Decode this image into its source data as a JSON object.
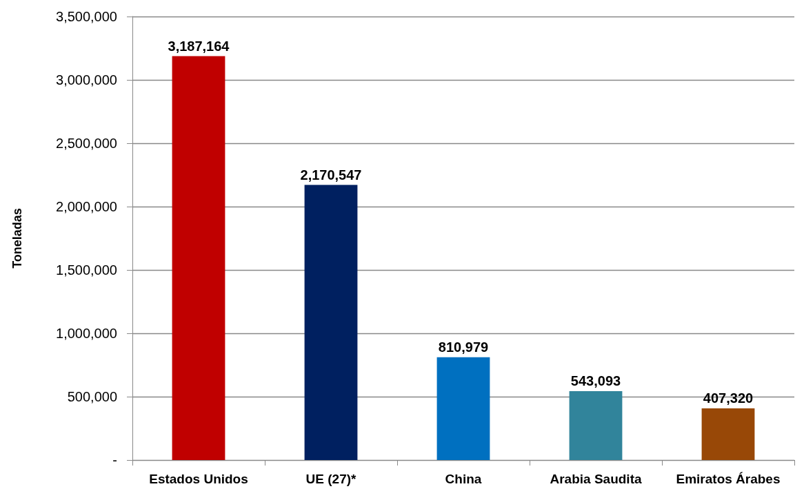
{
  "chart_data": {
    "type": "bar",
    "ylabel": "Toneladas",
    "categories": [
      "Estados Unidos",
      "UE (27)*",
      "China",
      "Arabia Saudita",
      "Emiratos Árabes"
    ],
    "values": [
      3187164,
      2170547,
      810979,
      543093,
      407320
    ],
    "value_labels": [
      "3,187,164",
      "2,170,547",
      "810,979",
      "543,093",
      "407,320"
    ],
    "colors": [
      "#c00000",
      "#002060",
      "#0070c0",
      "#31849b",
      "#984807"
    ],
    "ylim": [
      0,
      3500000
    ],
    "yticks": [
      {
        "value": 0,
        "label": "-"
      },
      {
        "value": 500000,
        "label": "500,000"
      },
      {
        "value": 1000000,
        "label": "1,000,000"
      },
      {
        "value": 1500000,
        "label": "1,500,000"
      },
      {
        "value": 2000000,
        "label": "2,000,000"
      },
      {
        "value": 2500000,
        "label": "2,500,000"
      },
      {
        "value": 3000000,
        "label": "3,000,000"
      },
      {
        "value": 3500000,
        "label": "3,500,000"
      }
    ],
    "grid": "y"
  }
}
